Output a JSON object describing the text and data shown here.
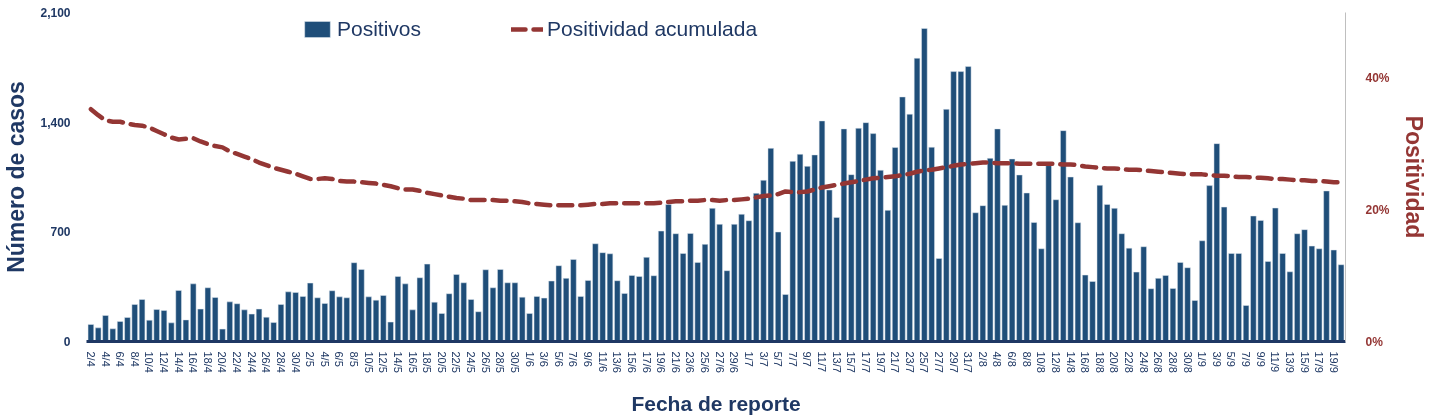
{
  "chart_data": {
    "type": "bar",
    "xlabel": "Fecha de reporte",
    "ylabel": "Número de casos",
    "y2label": "Positividad",
    "categories": [
      "2/4",
      null,
      "4/4",
      null,
      "6/4",
      null,
      "8/4",
      null,
      "10/4",
      null,
      "12/4",
      null,
      "14/4",
      null,
      "16/4",
      null,
      "18/4",
      null,
      "20/4",
      null,
      "22/4",
      null,
      "24/4",
      null,
      "26/4",
      null,
      "28/4",
      null,
      "30/4",
      null,
      "2/5",
      null,
      "4/5",
      null,
      "6/5",
      null,
      "8/5",
      null,
      "10/5",
      null,
      "12/5",
      null,
      "14/5",
      null,
      "16/5",
      null,
      "18/5",
      null,
      "20/5",
      null,
      "22/5",
      null,
      "24/5",
      null,
      "26/5",
      null,
      "28/5",
      null,
      "30/5",
      null,
      "1/6",
      null,
      "3/6",
      null,
      "5/6",
      null,
      "7/6",
      null,
      "9/6",
      null,
      "11/6",
      null,
      "13/6",
      null,
      "15/6",
      null,
      "17/6",
      null,
      "19/6",
      null,
      "21/6",
      null,
      "23/6",
      null,
      "25/6",
      null,
      "27/6",
      null,
      "29/6",
      null,
      "1/7",
      null,
      "3/7",
      null,
      "5/7",
      null,
      "7/7",
      null,
      "9/7",
      null,
      "11/7",
      null,
      "13/7",
      null,
      "15/7",
      null,
      "17/7",
      null,
      "19/7",
      null,
      "21/7",
      null,
      "23/7",
      null,
      "25/7",
      null,
      "27/7",
      null,
      "29/7",
      null,
      "31/7",
      null,
      "2/8",
      null,
      "4/8",
      null,
      "6/8",
      null,
      "8/8",
      null,
      "10/8",
      null,
      "12/8",
      null,
      "14/8",
      null,
      "16/8",
      null,
      "18/8",
      null,
      "20/8",
      null,
      "22/8",
      null,
      "24/8",
      null,
      "26/8",
      null,
      "28/8",
      null,
      "30/8",
      null,
      "1/9",
      null,
      "3/9",
      null,
      "5/9",
      null,
      "7/9",
      null,
      "9/9",
      null,
      "11/9",
      null,
      "13/9",
      null,
      "15/9",
      null,
      "17/9",
      null,
      "19/9",
      null
    ],
    "series": [
      {
        "name": "Positivos",
        "color": "#1f4e79",
        "values": [
          109,
          87,
          166,
          81,
          128,
          153,
          236,
          268,
          136,
          204,
          198,
          119,
          326,
          138,
          368,
          207,
          343,
          281,
          79,
          253,
          241,
          202,
          175,
          207,
          155,
          121,
          236,
          317,
          313,
          288,
          373,
          279,
          243,
          324,
          285,
          279,
          503,
          460,
          285,
          264,
          294,
          124,
          415,
          368,
          202,
          407,
          494,
          251,
          179,
          305,
          428,
          375,
          268,
          190,
          458,
          343,
          460,
          375,
          375,
          283,
          179,
          288,
          277,
          386,
          484,
          403,
          524,
          288,
          390,
          624,
          567,
          560,
          388,
          307,
          422,
          415,
          537,
          420,
          705,
          875,
          688,
          562,
          690,
          505,
          620,
          850,
          748,
          452,
          748,
          812,
          771,
          946,
          1029,
          1233,
          699,
          300,
          1150,
          1195,
          1118,
          1191,
          1408,
          967,
          792,
          1357,
          1065,
          1361,
          1397,
          1327,
          1093,
          837,
          1238,
          1561,
          1451,
          1808,
          1998,
          1240,
          530,
          1482,
          1723,
          1723,
          1755,
          822,
          867,
          1169,
          1357,
          869,
          1165,
          1063,
          948,
          760,
          592,
          1123,
          905,
          1346,
          1050,
          758,
          424,
          383,
          997,
          875,
          850,
          688,
          596,
          443,
          605,
          337,
          403,
          422,
          339,
          505,
          471,
          262,
          643,
          995,
          1263,
          858,
          562,
          562,
          230,
          801,
          773,
          511,
          852,
          562,
          445,
          688,
          714,
          609,
          592,
          961,
          584,
          490
        ]
      },
      {
        "name": "Positividad acumulada",
        "type": "line",
        "axis": "y2",
        "line_style": "dashed",
        "color": "#943634",
        "values": [
          35.3,
          34.4,
          33.6,
          33.4,
          33.4,
          33.1,
          32.9,
          32.8,
          32.5,
          32.0,
          31.5,
          31.0,
          30.7,
          30.8,
          30.9,
          30.4,
          30.0,
          29.7,
          29.5,
          28.9,
          28.5,
          28.1,
          27.7,
          27.2,
          26.8,
          26.4,
          26.1,
          25.8,
          25.5,
          25.1,
          24.7,
          24.7,
          24.8,
          24.7,
          24.4,
          24.3,
          24.3,
          24.2,
          24.1,
          24.0,
          23.8,
          23.6,
          23.3,
          23.1,
          23.1,
          22.9,
          22.6,
          22.4,
          22.2,
          22.0,
          21.8,
          21.7,
          21.5,
          21.5,
          21.5,
          21.5,
          21.4,
          21.4,
          21.3,
          21.2,
          21.0,
          20.9,
          20.8,
          20.7,
          20.7,
          20.7,
          20.7,
          20.7,
          20.8,
          20.9,
          20.9,
          21.0,
          21.0,
          21.0,
          21.0,
          21.0,
          21.0,
          21.0,
          21.1,
          21.2,
          21.3,
          21.3,
          21.4,
          21.4,
          21.5,
          21.5,
          21.4,
          21.5,
          21.5,
          21.6,
          21.7,
          21.9,
          22.1,
          22.2,
          22.4,
          22.8,
          22.7,
          22.7,
          22.8,
          23.1,
          23.4,
          23.6,
          23.8,
          24.0,
          24.2,
          24.4,
          24.6,
          24.8,
          24.9,
          25.0,
          25.1,
          25.3,
          25.5,
          25.8,
          26.0,
          26.1,
          26.3,
          26.5,
          26.7,
          26.9,
          27.0,
          27.1,
          27.2,
          27.2,
          27.1,
          27.1,
          27.1,
          27.0,
          27.0,
          27.0,
          27.0,
          27.0,
          27.0,
          26.9,
          26.9,
          26.8,
          26.6,
          26.5,
          26.4,
          26.3,
          26.3,
          26.2,
          26.1,
          26.1,
          26.0,
          25.9,
          25.8,
          25.7,
          25.6,
          25.5,
          25.4,
          25.4,
          25.4,
          25.3,
          25.2,
          25.2,
          25.1,
          25.0,
          25.0,
          24.9,
          24.9,
          24.8,
          24.7,
          24.7,
          24.6,
          24.5,
          24.5,
          24.4,
          24.4,
          24.3,
          24.2,
          24.2
        ]
      }
    ],
    "ylim": [
      0,
      2100
    ],
    "yticks": [
      0,
      700,
      {
        "value": 1400,
        "label": "1,400"
      },
      {
        "value": 2100,
        "label": "2,100"
      }
    ],
    "y2lim": [
      0,
      50
    ],
    "y2ticks": [
      {
        "value": 0,
        "label": "0%"
      },
      {
        "value": 20,
        "label": "20%"
      },
      {
        "value": 40,
        "label": "40%"
      }
    ],
    "legend": "top"
  }
}
